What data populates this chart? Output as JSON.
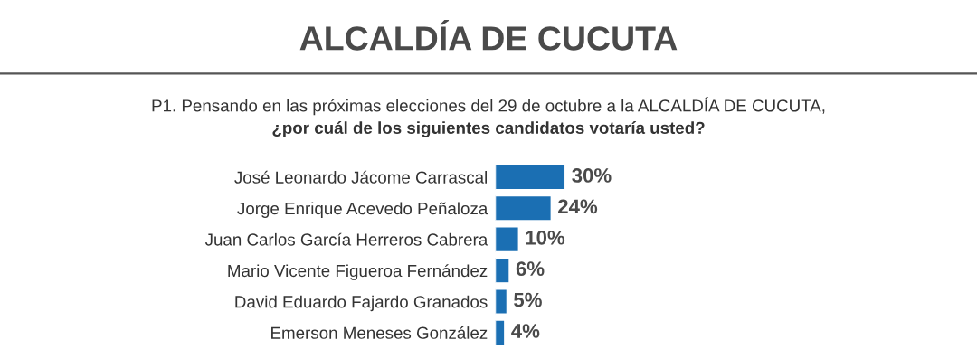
{
  "chart_data": {
    "type": "bar",
    "orientation": "horizontal",
    "title": "ALCALDÍA DE CUCUTA",
    "subtitle": "P1. Pensando en las próximas elecciones del 29 de octubre a la ALCALDÍA DE CUCUTA,\n¿por cuál de los siguientes candidatos votaría usted?",
    "categories": [
      "José Leonardo Jácome Carrascal",
      "Jorge Enrique Acevedo Peñaloza",
      "Juan Carlos García Herreros Cabrera",
      "Mario Vicente Figueroa Fernández",
      "David Eduardo Fajardo Granados",
      "Emerson Meneses González"
    ],
    "values": [
      30,
      24,
      10,
      6,
      5,
      4
    ],
    "color": "#1b6fb3",
    "value_labels": [
      "30%",
      "24%",
      "10%",
      "6%",
      "5%",
      "4%"
    ],
    "tick_labels": "y",
    "grid": false,
    "legend": false
  }
}
